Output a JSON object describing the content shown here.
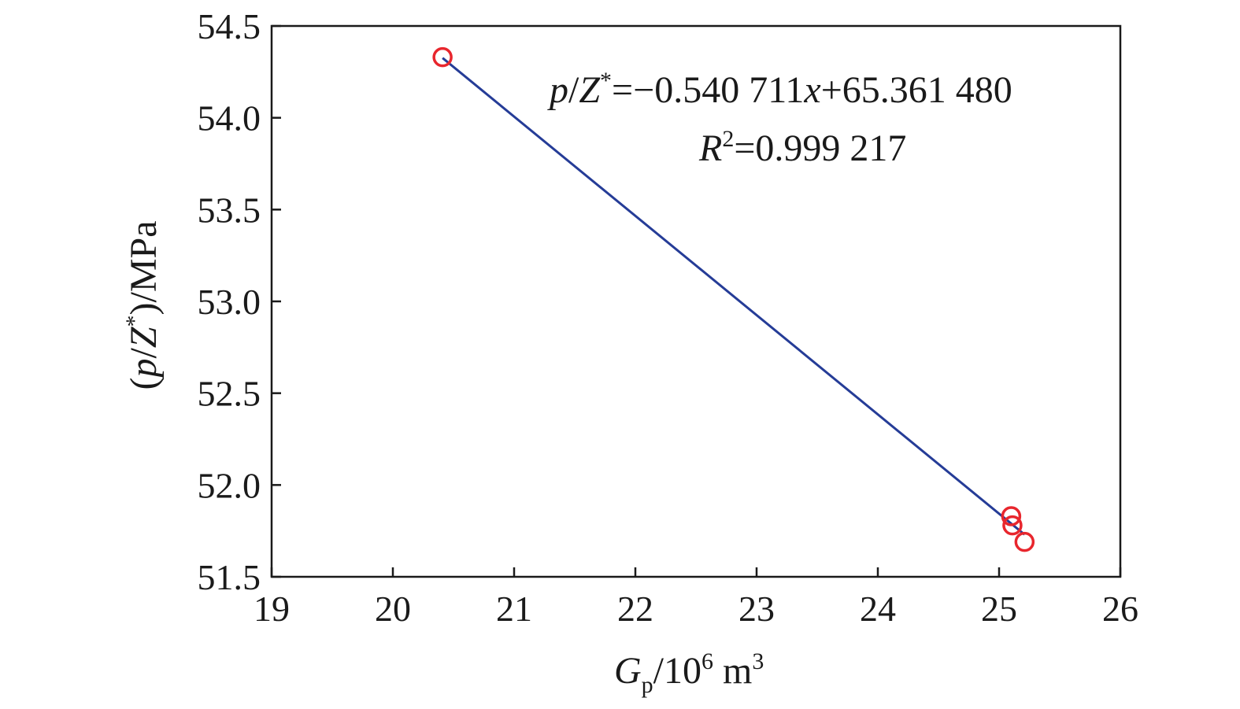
{
  "chart_data": {
    "type": "scatter",
    "x": [
      20.41,
      25.1,
      25.11,
      25.21
    ],
    "y": [
      54.33,
      51.83,
      51.78,
      51.69
    ],
    "xlim": [
      19,
      26
    ],
    "ylim": [
      51.5,
      54.5
    ],
    "xticks": [
      "19",
      "20",
      "21",
      "22",
      "23",
      "24",
      "25",
      "26"
    ],
    "yticks": [
      "51.5",
      "52.0",
      "52.5",
      "53.0",
      "53.5",
      "54.0",
      "54.5"
    ],
    "xlabel": {
      "main": "G",
      "sub": "p",
      "mid": "/10",
      "sup1": "6",
      "unit": " m",
      "sup2": "3"
    },
    "ylabel": {
      "open": "(",
      "p": "p",
      "slash": "/",
      "Z": "Z",
      "star": "*",
      "rest": ")/MPa"
    },
    "fit_line": {
      "slope": -0.540711,
      "intercept": 65.36148,
      "x_range": [
        20.41,
        25.21
      ]
    },
    "equation": {
      "p": "p",
      "slash": "/",
      "Z": "Z",
      "star": "*",
      "rest": "=−0.540 711",
      "x": "x",
      "tail": "+65.361 480"
    },
    "r2": {
      "R": "R",
      "sup": "2",
      "rest": "=0.999 217"
    },
    "grid": false,
    "colors": {
      "marker": "#e8262d",
      "line": "#253c97",
      "axis": "#1a1a1a"
    }
  }
}
